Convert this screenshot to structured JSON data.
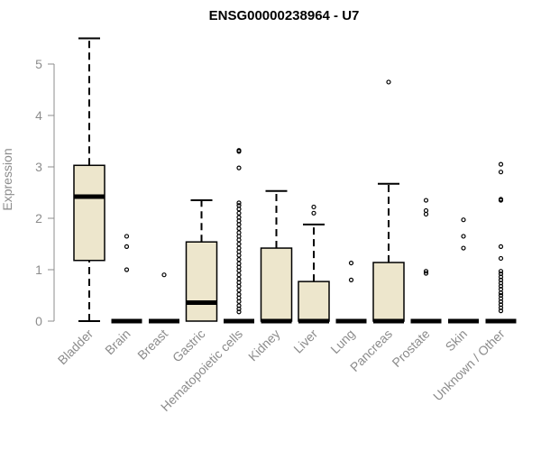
{
  "chart_data": {
    "type": "box",
    "title": "ENSG00000238964 - U7",
    "xlabel": "",
    "ylabel": "Expression",
    "ylim": [
      0,
      5.5
    ],
    "yticks": [
      "0",
      "1",
      "2",
      "3",
      "4",
      "5"
    ],
    "grid": false,
    "colors": {
      "box_fill": "#ede6cc",
      "stroke": "#000000",
      "axis": "#8c8c8c"
    },
    "categories": [
      "Bladder",
      "Brain",
      "Breast",
      "Gastric",
      "Hematopoietic cells",
      "Kidney",
      "Liver",
      "Lung",
      "Pancreas",
      "Prostate",
      "Skin",
      "Unknown / Other"
    ],
    "boxes": [
      {
        "q1": 1.18,
        "median": 2.42,
        "q3": 3.03,
        "whisker_low": 0,
        "whisker_high": 5.5,
        "outliers": []
      },
      {
        "q1": 0,
        "median": 0,
        "q3": 0,
        "whisker_low": 0,
        "whisker_high": 0,
        "outliers": [
          1.65,
          1.45,
          1.0
        ]
      },
      {
        "q1": 0,
        "median": 0,
        "q3": 0,
        "whisker_low": 0,
        "whisker_high": 0,
        "outliers": [
          0.9
        ]
      },
      {
        "q1": 0,
        "median": 0.36,
        "q3": 1.54,
        "whisker_low": 0,
        "whisker_high": 2.35,
        "outliers": []
      },
      {
        "q1": 0,
        "median": 0,
        "q3": 0,
        "whisker_low": 0,
        "whisker_high": 0,
        "outliers": [
          3.32,
          3.3,
          2.98,
          2.3,
          2.25,
          2.18,
          2.1,
          2.02,
          1.95,
          1.88,
          1.8,
          1.72,
          1.65,
          1.58,
          1.5,
          1.42,
          1.35,
          1.28,
          1.2,
          1.12,
          1.05,
          0.98,
          0.9,
          0.82,
          0.75,
          0.68,
          0.6,
          0.52,
          0.45,
          0.38,
          0.3,
          0.24,
          0.18
        ]
      },
      {
        "q1": 0,
        "median": 0,
        "q3": 1.42,
        "whisker_low": 0,
        "whisker_high": 2.53,
        "outliers": []
      },
      {
        "q1": 0,
        "median": 0,
        "q3": 0.77,
        "whisker_low": 0,
        "whisker_high": 1.88,
        "outliers": [
          2.22,
          2.1
        ]
      },
      {
        "q1": 0,
        "median": 0,
        "q3": 0,
        "whisker_low": 0,
        "whisker_high": 0,
        "outliers": [
          1.13,
          0.8
        ]
      },
      {
        "q1": 0,
        "median": 0,
        "q3": 1.14,
        "whisker_low": 0,
        "whisker_high": 2.67,
        "outliers": [
          4.65
        ]
      },
      {
        "q1": 0,
        "median": 0,
        "q3": 0,
        "whisker_low": 0,
        "whisker_high": 0,
        "outliers": [
          2.35,
          2.15,
          2.08,
          0.97,
          0.93
        ]
      },
      {
        "q1": 0,
        "median": 0,
        "q3": 0,
        "whisker_low": 0,
        "whisker_high": 0,
        "outliers": [
          1.97,
          1.65,
          1.42
        ]
      },
      {
        "q1": 0,
        "median": 0,
        "q3": 0,
        "whisker_low": 0,
        "whisker_high": 0,
        "outliers": [
          3.05,
          2.9,
          2.37,
          2.35,
          1.45,
          1.22,
          0.97,
          0.92,
          0.86,
          0.8,
          0.74,
          0.68,
          0.62,
          0.55,
          0.5,
          0.44,
          0.38,
          0.32,
          0.26,
          0.2
        ]
      }
    ]
  }
}
